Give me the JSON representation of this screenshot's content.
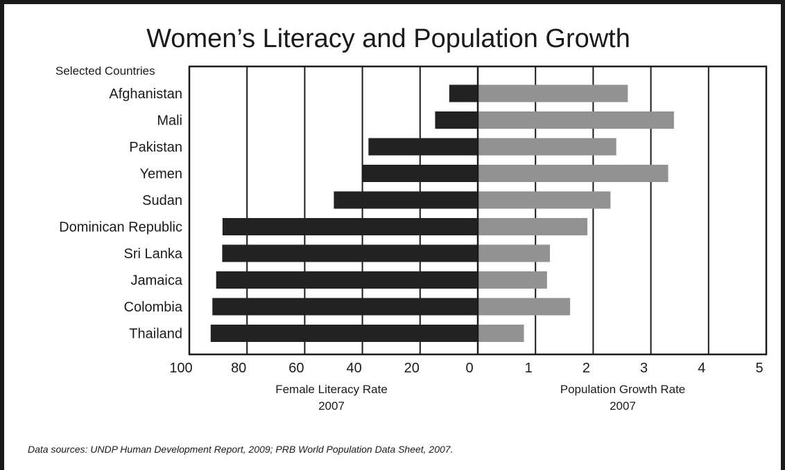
{
  "chart_data": {
    "type": "bar",
    "title": "Women’s Literacy and Population Growth",
    "category_header": "Selected Countries",
    "categories": [
      "Afghanistan",
      "Mali",
      "Pakistan",
      "Yemen",
      "Sudan",
      "Dominican Republic",
      "Sri Lanka",
      "Jamaica",
      "Colombia",
      "Thailand"
    ],
    "left_panel": {
      "xlabel": "Female Literacy Rate",
      "xlabel_year": "2007",
      "xlim": [
        100,
        0
      ],
      "ticks": [
        "100",
        "80",
        "60",
        "40",
        "20",
        "0"
      ],
      "series": [
        {
          "name": "Female Literacy Rate",
          "color": "#222222",
          "values": [
            9.9,
            14.8,
            37.9,
            39.8,
            49.9,
            88.5,
            88.6,
            90.7,
            92.0,
            92.6
          ]
        }
      ]
    },
    "right_panel": {
      "xlabel": "Population Growth Rate",
      "xlabel_year": "2007",
      "xlim": [
        0,
        5
      ],
      "ticks": [
        "1",
        "2",
        "3",
        "4",
        "5"
      ],
      "series": [
        {
          "name": "Population Growth Rate",
          "color": "#929292",
          "values": [
            2.6,
            3.4,
            2.4,
            3.3,
            2.3,
            1.9,
            1.25,
            1.2,
            1.6,
            0.8
          ]
        }
      ]
    },
    "grid": true,
    "legend": "none",
    "source_note": "Data sources: UNDP Human Development Report, 2009; PRB World Population Data Sheet, 2007."
  }
}
